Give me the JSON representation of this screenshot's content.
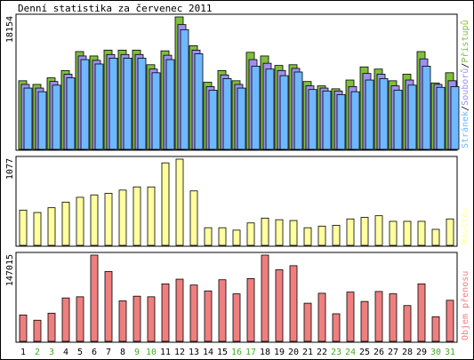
{
  "title": "Denní statistika za červenec 2011",
  "colors": {
    "hits": "#7fbf3f",
    "files": "#9f8fef",
    "pages": "#6fb7ff",
    "visits": "#ffff9f",
    "traffic": "#ef7f7f",
    "weekend_label": "#44aa22",
    "weekday_label": "#000000"
  },
  "chart_data": [
    {
      "type": "bar",
      "ylabel": "18154",
      "ymax": 18154,
      "legend": [
        {
          "text": "Stránek",
          "color": "#6fb7ff"
        },
        {
          "text": "/",
          "color": "#000000"
        },
        {
          "text": "Souborů",
          "color": "#9f8fef"
        },
        {
          "text": "/",
          "color": "#000000"
        },
        {
          "text": "Přístupů",
          "color": "#7fbf3f"
        }
      ],
      "categories": [
        "1",
        "2",
        "3",
        "4",
        "5",
        "6",
        "7",
        "8",
        "9",
        "10",
        "11",
        "12",
        "13",
        "14",
        "15",
        "16",
        "17",
        "18",
        "19",
        "20",
        "21",
        "22",
        "23",
        "24",
        "25",
        "26",
        "27",
        "28",
        "29",
        "30",
        "31"
      ],
      "weekend_days": [
        2,
        3,
        9,
        10,
        16,
        17,
        23,
        24,
        30,
        31
      ],
      "series": [
        {
          "name": "Přístupů",
          "values": [
            9400,
            8900,
            9800,
            10800,
            13400,
            12800,
            13600,
            13600,
            13600,
            11600,
            13500,
            18154,
            14200,
            9200,
            10800,
            9400,
            13300,
            12800,
            11500,
            11600,
            9300,
            8700,
            8300,
            9500,
            11300,
            11000,
            9400,
            10300,
            13400,
            9100,
            10500
          ]
        },
        {
          "name": "Souborů",
          "values": [
            8900,
            8400,
            9300,
            10300,
            12800,
            12200,
            13000,
            13000,
            13000,
            11000,
            12900,
            17100,
            13600,
            8600,
            10200,
            8900,
            12300,
            11800,
            10800,
            11100,
            8700,
            8400,
            8000,
            8600,
            10400,
            10300,
            8700,
            9500,
            12400,
            8900,
            9400
          ]
        },
        {
          "name": "Stránek",
          "values": [
            8400,
            7900,
            8800,
            9800,
            12300,
            11700,
            12500,
            12500,
            12500,
            10500,
            12300,
            16400,
            13100,
            8100,
            9700,
            8400,
            11400,
            11000,
            10100,
            10600,
            8200,
            8000,
            7500,
            7900,
            9500,
            9700,
            8100,
            8800,
            11400,
            8500,
            8600
          ]
        }
      ]
    },
    {
      "type": "bar",
      "ylabel": "1077",
      "ymax": 1077,
      "legend": [
        {
          "text": "Návštěv",
          "color": "#ffff9f"
        }
      ],
      "categories": [
        "1",
        "2",
        "3",
        "4",
        "5",
        "6",
        "7",
        "8",
        "9",
        "10",
        "11",
        "12",
        "13",
        "14",
        "15",
        "16",
        "17",
        "18",
        "19",
        "20",
        "21",
        "22",
        "23",
        "24",
        "25",
        "26",
        "27",
        "28",
        "29",
        "30",
        "31"
      ],
      "series": [
        {
          "name": "Návštěv",
          "values": [
            440,
            410,
            470,
            540,
            600,
            630,
            650,
            690,
            730,
            730,
            1030,
            1077,
            680,
            220,
            220,
            190,
            280,
            340,
            320,
            310,
            220,
            240,
            250,
            330,
            350,
            370,
            300,
            300,
            300,
            200,
            330
          ]
        }
      ]
    },
    {
      "type": "bar",
      "ylabel": "147015",
      "ymax": 147015,
      "legend": [
        {
          "text": "Objem přenosu",
          "color": "#ef7f7f"
        }
      ],
      "categories": [
        "1",
        "2",
        "3",
        "4",
        "5",
        "6",
        "7",
        "8",
        "9",
        "10",
        "11",
        "12",
        "13",
        "14",
        "15",
        "16",
        "17",
        "18",
        "19",
        "20",
        "21",
        "22",
        "23",
        "24",
        "25",
        "26",
        "27",
        "28",
        "29",
        "30",
        "31"
      ],
      "series": [
        {
          "name": "Objem přenosu",
          "values": [
            45000,
            36000,
            48000,
            74000,
            76000,
            147015,
            119000,
            69000,
            77000,
            76000,
            98000,
            106000,
            96000,
            86000,
            105000,
            81000,
            107000,
            147015,
            122000,
            129000,
            65000,
            82000,
            47000,
            84000,
            68000,
            85000,
            81000,
            61000,
            98000,
            42000,
            70000
          ]
        }
      ]
    }
  ]
}
